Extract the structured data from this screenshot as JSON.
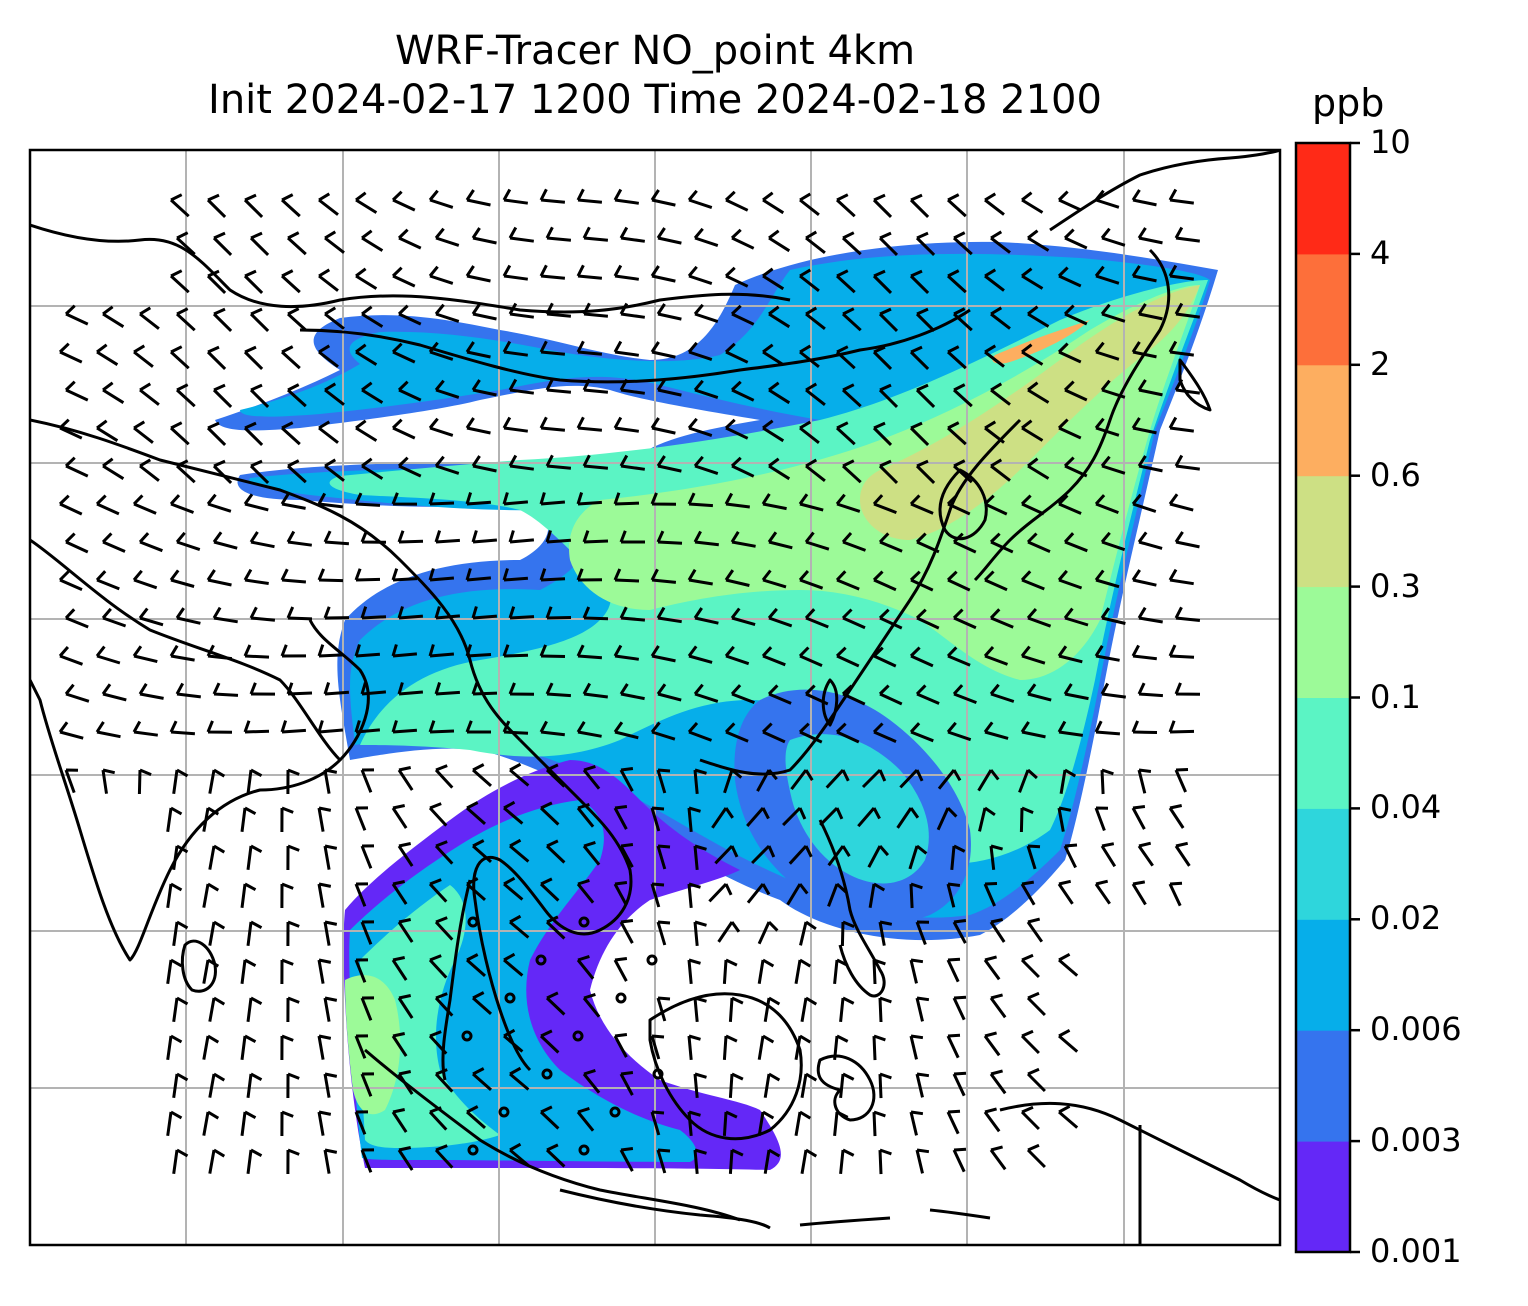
{
  "figure": {
    "title_line1": "WRF-Tracer NO_point 4km",
    "title_line2": "Init 2024-02-17 1200 Time 2024-02-18 2100"
  },
  "colorbar": {
    "unit": "ppb",
    "levels": [
      "0.001",
      "0.003",
      "0.006",
      "0.02",
      "0.04",
      "0.1",
      "0.3",
      "0.6",
      "2",
      "4",
      "10"
    ],
    "colors": [
      "#6428f7",
      "#3574ee",
      "#06aeea",
      "#2ed6dc",
      "#5bf4c4",
      "#9cfa98",
      "#cde084",
      "#fdae60",
      "#fd6f3a",
      "#ff2a17"
    ]
  },
  "map_style": {
    "gridline_color": "#b3b3b3",
    "coastline_color": "#000000",
    "barb_color": "#000000",
    "background": "#ffffff"
  }
}
